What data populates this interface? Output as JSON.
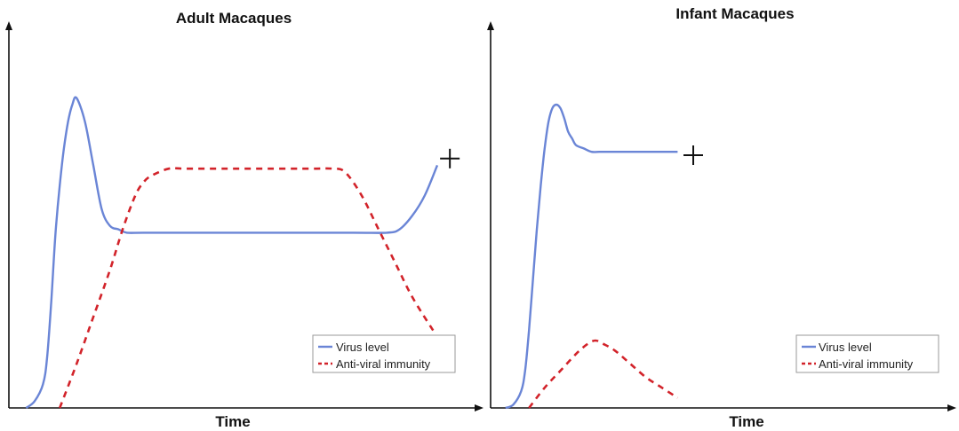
{
  "figure": {
    "panels": [
      {
        "title": "Adult Macaques",
        "xlabel": "Time"
      },
      {
        "title": "Infant Macaques",
        "xlabel": "Time"
      }
    ],
    "legend": {
      "virus_label": "Virus level",
      "immunity_label": "Anti-viral immunity"
    },
    "colors": {
      "virus": "#6a85d6",
      "immunity": "#d2232a"
    },
    "icons": {
      "endpoint_marker": "cross-mark-icon"
    }
  },
  "chart_data": [
    {
      "type": "line",
      "title": "Adult Macaques",
      "xlabel": "Time",
      "ylabel": "",
      "xlim": [
        0,
        100
      ],
      "ylim": [
        0,
        100
      ],
      "grid": false,
      "legend_position": "bottom-right",
      "series": [
        {
          "name": "Virus level",
          "color": "#6a85d6",
          "style": "solid",
          "x": [
            2,
            4,
            6,
            7,
            8,
            9,
            10,
            11,
            12,
            13,
            14,
            16,
            18,
            20,
            22,
            24,
            26,
            30,
            40,
            60,
            80,
            88,
            91,
            94,
            97,
            100
          ],
          "y": [
            0,
            2,
            7,
            15,
            32,
            52,
            66,
            77,
            85,
            90,
            92,
            85,
            72,
            59,
            54,
            53,
            52,
            52,
            52,
            52,
            52,
            52,
            53,
            57,
            63,
            72
          ]
        },
        {
          "name": "Anti-viral immunity",
          "color": "#d2232a",
          "style": "dashed",
          "x": [
            10,
            14,
            18,
            22,
            25,
            28,
            30,
            32,
            36,
            40,
            50,
            60,
            70,
            75,
            78,
            82,
            86,
            90,
            94,
            99
          ],
          "y": [
            0,
            13,
            27,
            41,
            53,
            63,
            67,
            69,
            71,
            71,
            71,
            71,
            71,
            71,
            70,
            63,
            53,
            43,
            33,
            23
          ]
        }
      ],
      "annotations": [
        {
          "type": "cross",
          "x": 103,
          "y": 74
        }
      ]
    },
    {
      "type": "line",
      "title": "Infant Macaques",
      "xlabel": "Time",
      "ylabel": "",
      "xlim": [
        0,
        100
      ],
      "ylim": [
        0,
        100
      ],
      "grid": false,
      "legend_position": "bottom-right",
      "series": [
        {
          "name": "Virus level",
          "color": "#6a85d6",
          "style": "solid",
          "x": [
            2,
            4,
            6,
            7,
            8,
            9,
            10,
            11,
            12,
            13,
            14,
            15,
            16,
            17,
            18,
            19,
            20,
            22,
            24,
            26,
            28,
            30,
            40,
            46
          ],
          "y": [
            0,
            1,
            5,
            11,
            23,
            38,
            53,
            66,
            77,
            85,
            89,
            90,
            89,
            86,
            82,
            80,
            78,
            77,
            76,
            76,
            76,
            76,
            76,
            76
          ]
        },
        {
          "name": "Anti-viral immunity",
          "color": "#d2232a",
          "style": "dashed",
          "x": [
            8,
            12,
            16,
            20,
            23,
            25,
            27,
            30,
            34,
            38,
            42,
            46
          ],
          "y": [
            0,
            6,
            11,
            16,
            19,
            20,
            19,
            17,
            13,
            9,
            6,
            3
          ]
        }
      ],
      "annotations": [
        {
          "type": "cross",
          "x": 50,
          "y": 75
        }
      ]
    }
  ]
}
